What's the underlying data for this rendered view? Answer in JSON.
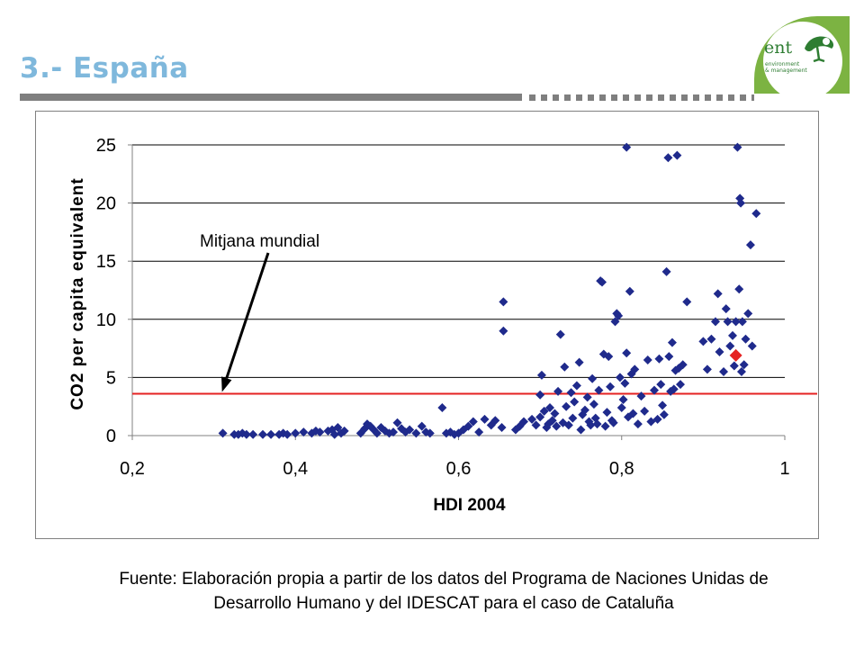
{
  "slide": {
    "title": "3.- España",
    "caption_line1": "Fuente: Elaboración propia a partir de los datos del Programa de Naciones Unidas de",
    "caption_line2": "Desarrollo Humano y del IDESCAT para el caso de Cataluña",
    "logo_text": "ent",
    "logo_sub1": "environment",
    "logo_sub2": "& management"
  },
  "colors": {
    "title": "#7fb8dc",
    "points": "#1f2a8c",
    "highlight": "#e52222",
    "reference_line": "#e52222",
    "logo_green": "#7cb342"
  },
  "chart_data": {
    "type": "scatter",
    "xlabel": "HDI 2004",
    "ylabel": "CO2 per capita equivalent",
    "xlim": [
      0.2,
      1.0
    ],
    "ylim": [
      0,
      25
    ],
    "xticks": [
      0.2,
      0.4,
      0.6,
      0.8,
      1.0
    ],
    "xtick_labels": [
      "0,2",
      "0,4",
      "0,6",
      "0,8",
      "1"
    ],
    "yticks": [
      0,
      5,
      10,
      15,
      20,
      25
    ],
    "ytick_labels": [
      "0",
      "5",
      "10",
      "15",
      "20",
      "25"
    ],
    "grid": "horizontal",
    "annotation": {
      "text": "Mitjana mundial",
      "arrow_to": [
        0.31,
        3.6
      ]
    },
    "reference_line": {
      "y": 3.6,
      "label": "Mitjana mundial"
    },
    "highlight_point": {
      "x": 0.94,
      "y": 6.9
    },
    "points": [
      [
        0.311,
        0.2
      ],
      [
        0.325,
        0.1
      ],
      [
        0.33,
        0.1
      ],
      [
        0.335,
        0.2
      ],
      [
        0.34,
        0.1
      ],
      [
        0.348,
        0.1
      ],
      [
        0.36,
        0.1
      ],
      [
        0.37,
        0.1
      ],
      [
        0.38,
        0.1
      ],
      [
        0.385,
        0.2
      ],
      [
        0.39,
        0.1
      ],
      [
        0.4,
        0.2
      ],
      [
        0.41,
        0.3
      ],
      [
        0.42,
        0.2
      ],
      [
        0.425,
        0.4
      ],
      [
        0.43,
        0.3
      ],
      [
        0.44,
        0.4
      ],
      [
        0.445,
        0.5
      ],
      [
        0.448,
        0.1
      ],
      [
        0.452,
        0.7
      ],
      [
        0.456,
        0.2
      ],
      [
        0.46,
        0.4
      ],
      [
        0.48,
        0.2
      ],
      [
        0.485,
        0.6
      ],
      [
        0.488,
        1.0
      ],
      [
        0.492,
        0.8
      ],
      [
        0.496,
        0.5
      ],
      [
        0.5,
        0.2
      ],
      [
        0.505,
        0.7
      ],
      [
        0.51,
        0.4
      ],
      [
        0.515,
        0.2
      ],
      [
        0.52,
        0.3
      ],
      [
        0.525,
        1.1
      ],
      [
        0.53,
        0.6
      ],
      [
        0.535,
        0.3
      ],
      [
        0.54,
        0.5
      ],
      [
        0.548,
        0.2
      ],
      [
        0.555,
        0.8
      ],
      [
        0.56,
        0.3
      ],
      [
        0.565,
        0.2
      ],
      [
        0.58,
        2.4
      ],
      [
        0.585,
        0.2
      ],
      [
        0.59,
        0.3
      ],
      [
        0.595,
        0.1
      ],
      [
        0.6,
        0.2
      ],
      [
        0.606,
        0.5
      ],
      [
        0.612,
        0.8
      ],
      [
        0.618,
        1.2
      ],
      [
        0.625,
        0.3
      ],
      [
        0.632,
        1.4
      ],
      [
        0.64,
        0.9
      ],
      [
        0.645,
        1.3
      ],
      [
        0.653,
        0.7
      ],
      [
        0.655,
        9.0
      ],
      [
        0.655,
        11.5
      ],
      [
        0.67,
        0.5
      ],
      [
        0.675,
        0.8
      ],
      [
        0.68,
        1.2
      ],
      [
        0.69,
        1.4
      ],
      [
        0.695,
        0.9
      ],
      [
        0.7,
        1.6
      ],
      [
        0.7,
        3.5
      ],
      [
        0.702,
        5.2
      ],
      [
        0.705,
        2.1
      ],
      [
        0.708,
        0.7
      ],
      [
        0.71,
        1.0
      ],
      [
        0.712,
        2.4
      ],
      [
        0.715,
        1.3
      ],
      [
        0.718,
        1.9
      ],
      [
        0.72,
        0.8
      ],
      [
        0.722,
        3.8
      ],
      [
        0.725,
        8.7
      ],
      [
        0.728,
        1.1
      ],
      [
        0.73,
        5.9
      ],
      [
        0.732,
        2.5
      ],
      [
        0.735,
        0.9
      ],
      [
        0.738,
        3.7
      ],
      [
        0.74,
        1.5
      ],
      [
        0.742,
        2.9
      ],
      [
        0.745,
        4.3
      ],
      [
        0.748,
        6.3
      ],
      [
        0.75,
        0.5
      ],
      [
        0.752,
        1.8
      ],
      [
        0.755,
        2.2
      ],
      [
        0.758,
        3.3
      ],
      [
        0.76,
        1.2
      ],
      [
        0.762,
        0.9
      ],
      [
        0.764,
        4.9
      ],
      [
        0.766,
        2.7
      ],
      [
        0.768,
        1.5
      ],
      [
        0.77,
        1.0
      ],
      [
        0.772,
        3.9
      ],
      [
        0.774,
        13.3
      ],
      [
        0.776,
        13.2
      ],
      [
        0.778,
        7.0
      ],
      [
        0.78,
        0.8
      ],
      [
        0.782,
        2.0
      ],
      [
        0.784,
        6.8
      ],
      [
        0.786,
        4.2
      ],
      [
        0.788,
        1.3
      ],
      [
        0.79,
        1.1
      ],
      [
        0.792,
        9.8
      ],
      [
        0.794,
        10.5
      ],
      [
        0.796,
        10.3
      ],
      [
        0.798,
        5.0
      ],
      [
        0.8,
        2.4
      ],
      [
        0.802,
        3.1
      ],
      [
        0.804,
        4.5
      ],
      [
        0.806,
        24.8
      ],
      [
        0.806,
        7.1
      ],
      [
        0.808,
        1.6
      ],
      [
        0.81,
        12.4
      ],
      [
        0.812,
        5.3
      ],
      [
        0.814,
        1.9
      ],
      [
        0.816,
        5.7
      ],
      [
        0.82,
        1.0
      ],
      [
        0.824,
        3.4
      ],
      [
        0.828,
        2.1
      ],
      [
        0.832,
        6.5
      ],
      [
        0.836,
        1.2
      ],
      [
        0.84,
        3.9
      ],
      [
        0.844,
        1.4
      ],
      [
        0.846,
        6.6
      ],
      [
        0.848,
        4.4
      ],
      [
        0.85,
        2.6
      ],
      [
        0.852,
        1.8
      ],
      [
        0.855,
        14.1
      ],
      [
        0.857,
        23.9
      ],
      [
        0.858,
        6.8
      ],
      [
        0.86,
        3.8
      ],
      [
        0.862,
        8.0
      ],
      [
        0.864,
        4.0
      ],
      [
        0.866,
        5.6
      ],
      [
        0.868,
        24.1
      ],
      [
        0.87,
        5.8
      ],
      [
        0.872,
        4.4
      ],
      [
        0.875,
        6.1
      ],
      [
        0.88,
        11.5
      ],
      [
        0.9,
        8.1
      ],
      [
        0.905,
        5.7
      ],
      [
        0.91,
        8.3
      ],
      [
        0.915,
        9.8
      ],
      [
        0.918,
        12.2
      ],
      [
        0.92,
        7.2
      ],
      [
        0.925,
        5.5
      ],
      [
        0.928,
        10.9
      ],
      [
        0.93,
        9.8
      ],
      [
        0.933,
        7.7
      ],
      [
        0.936,
        8.6
      ],
      [
        0.938,
        6.0
      ],
      [
        0.94,
        9.8
      ],
      [
        0.942,
        24.8
      ],
      [
        0.944,
        12.6
      ],
      [
        0.945,
        20.4
      ],
      [
        0.946,
        20.0
      ],
      [
        0.947,
        5.5
      ],
      [
        0.948,
        9.8
      ],
      [
        0.95,
        6.1
      ],
      [
        0.952,
        8.3
      ],
      [
        0.955,
        10.5
      ],
      [
        0.958,
        16.4
      ],
      [
        0.96,
        7.7
      ],
      [
        0.965,
        19.1
      ]
    ]
  }
}
